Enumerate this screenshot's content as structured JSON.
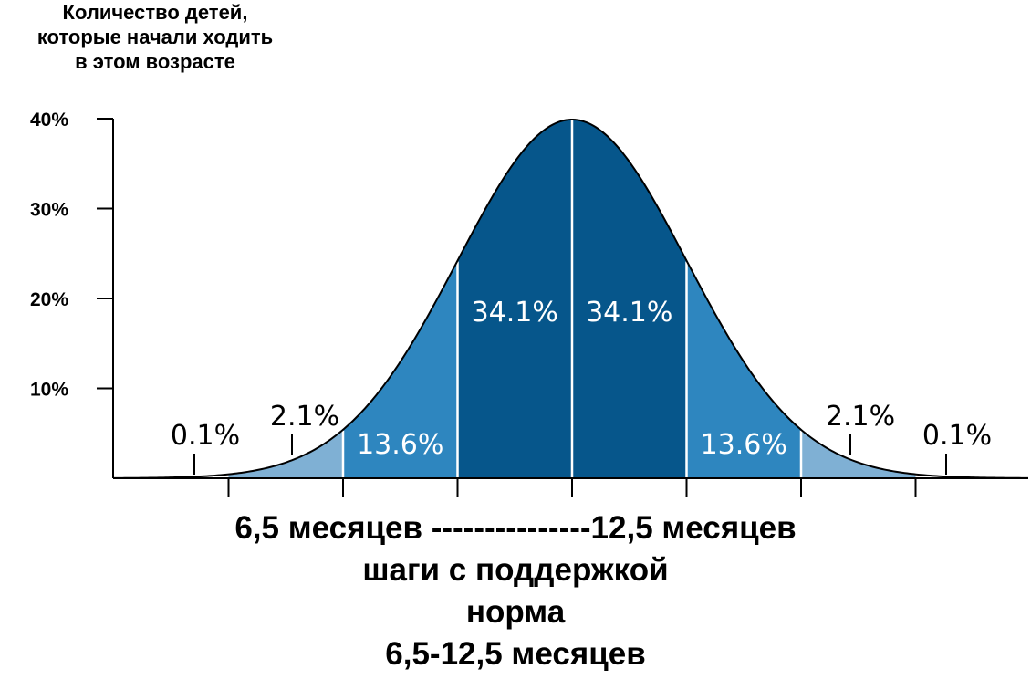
{
  "chart_data": {
    "type": "area",
    "y_axis_title": [
      "Количество детей,",
      "которые начали ходить",
      "в этом возрасте"
    ],
    "y_ticks": [
      {
        "value": 10,
        "label": "10%"
      },
      {
        "value": 20,
        "label": "20%"
      },
      {
        "value": 30,
        "label": "30%"
      },
      {
        "value": 40,
        "label": "40%"
      }
    ],
    "ylim": [
      0,
      40
    ],
    "x_unit": "standard deviations (σ)",
    "xlim": [
      -4,
      4
    ],
    "x_ticks": [
      -3,
      -2,
      -1,
      0,
      1,
      2,
      3
    ],
    "curve": {
      "type": "normal",
      "mean": 0,
      "sd": 1,
      "peak_percent": 39.9
    },
    "segments": [
      {
        "from": -4,
        "to": -3,
        "percent_label": "0.1%",
        "color": "#ffffff",
        "label_style": "outside"
      },
      {
        "from": -3,
        "to": -2,
        "percent_label": "2.1%",
        "color": "#7fb0d4",
        "label_style": "outside"
      },
      {
        "from": -2,
        "to": -1,
        "percent_label": "13.6%",
        "color": "#2e86bf",
        "label_style": "inside"
      },
      {
        "from": -1,
        "to": 0,
        "percent_label": "34.1%",
        "color": "#06568b",
        "label_style": "inside"
      },
      {
        "from": 0,
        "to": 1,
        "percent_label": "34.1%",
        "color": "#06568b",
        "label_style": "inside"
      },
      {
        "from": 1,
        "to": 2,
        "percent_label": "13.6%",
        "color": "#2e86bf",
        "label_style": "inside"
      },
      {
        "from": 2,
        "to": 3,
        "percent_label": "2.1%",
        "color": "#7fb0d4",
        "label_style": "outside"
      },
      {
        "from": 3,
        "to": 4,
        "percent_label": "0.1%",
        "color": "#ffffff",
        "label_style": "outside"
      }
    ],
    "x_caption": [
      "6,5 месяцев ---------------12,5 месяцев",
      "шаги с поддержкой",
      "норма",
      "6,5-12,5 месяцев"
    ]
  }
}
